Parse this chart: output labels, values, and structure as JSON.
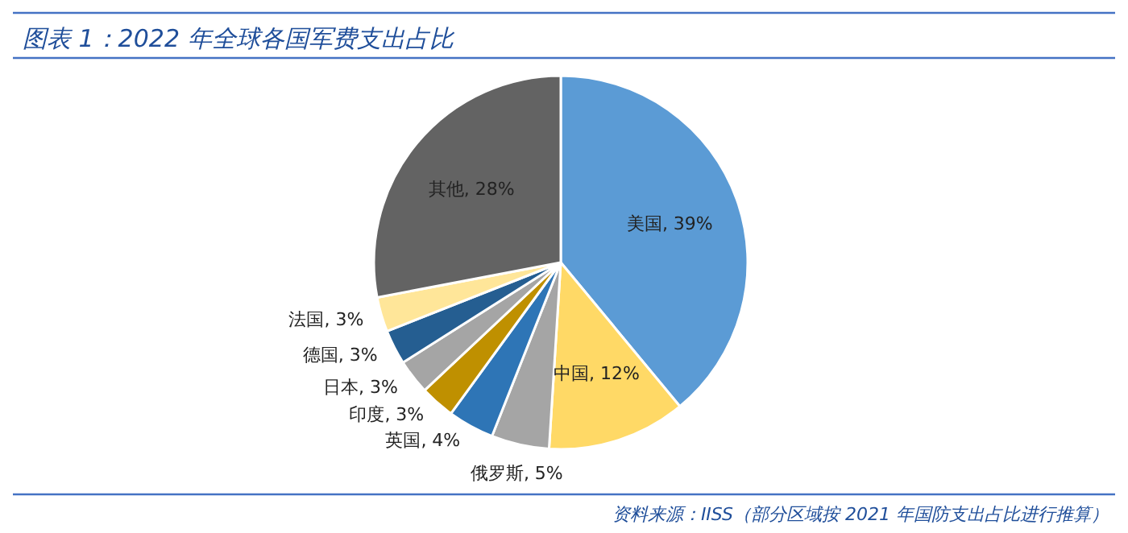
{
  "chart_data": {
    "type": "pie",
    "title": "图表 1：2022 年全球各国军费支出占比",
    "categories": [
      "美国",
      "中国",
      "俄罗斯",
      "英国",
      "印度",
      "日本",
      "德国",
      "法国",
      "其他"
    ],
    "values": [
      39,
      12,
      5,
      4,
      3,
      3,
      3,
      3,
      28
    ],
    "colors": [
      "#5b9bd5",
      "#ffd966",
      "#a5a5a5",
      "#2e75b6",
      "#bf9000",
      "#a5a5a5",
      "#255e91",
      "#ffe699",
      "#636363"
    ],
    "value_labels": [
      "39%",
      "12%",
      "5%",
      "4%",
      "3%",
      "3%",
      "3%",
      "3%",
      "28%"
    ],
    "annotations": [
      "资料来源：IISS（部分区域按 2021 年国防支出占比进行推算）"
    ]
  }
}
